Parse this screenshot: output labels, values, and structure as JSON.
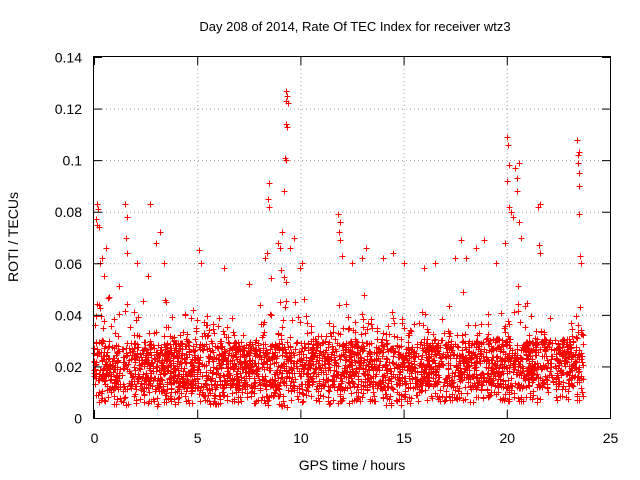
{
  "chart_data": {
    "type": "scatter",
    "title": "Day 208 of 2014, Rate Of TEC Index for receiver wtz3",
    "xlabel": "GPS time / hours",
    "ylabel": "ROTI / TECUs",
    "xlim": [
      0,
      25
    ],
    "ylim": [
      0,
      0.14
    ],
    "x_ticks": [
      "0",
      "5",
      "10",
      "15",
      "20",
      "25"
    ],
    "y_ticks": [
      "0",
      "0.02",
      "0.04",
      "0.06",
      "0.08",
      "0.1",
      "0.12",
      "0.14"
    ],
    "grid": true,
    "marker": "+",
    "color": "#ff0000",
    "series": [
      {
        "name": "ROTI",
        "envelope": {
          "x": [
            0,
            0.2,
            0.4,
            0.6,
            0.8,
            1.0,
            1.5,
            2.0,
            2.5,
            3.0,
            3.5,
            4.0,
            4.5,
            5.0,
            5.5,
            6.0,
            6.5,
            7.0,
            7.5,
            8.0,
            8.5,
            9.0,
            9.5,
            10.0,
            10.5,
            11.0,
            11.5,
            12.0,
            12.5,
            13.0,
            13.5,
            14.0,
            14.5,
            15.0,
            15.5,
            16.0,
            16.5,
            17.0,
            17.5,
            18.0,
            18.5,
            19.0,
            19.5,
            20.0,
            20.5,
            21.0,
            21.5,
            22.0,
            22.5,
            23.0,
            23.5,
            23.7
          ],
          "upper": [
            0.045,
            0.06,
            0.05,
            0.055,
            0.045,
            0.05,
            0.055,
            0.05,
            0.045,
            0.045,
            0.05,
            0.045,
            0.04,
            0.05,
            0.045,
            0.045,
            0.045,
            0.035,
            0.03,
            0.045,
            0.055,
            0.06,
            0.055,
            0.055,
            0.045,
            0.035,
            0.045,
            0.055,
            0.045,
            0.05,
            0.045,
            0.045,
            0.05,
            0.045,
            0.045,
            0.045,
            0.035,
            0.045,
            0.05,
            0.05,
            0.045,
            0.045,
            0.04,
            0.045,
            0.06,
            0.045,
            0.045,
            0.04,
            0.035,
            0.04,
            0.045,
            0.04
          ],
          "lower": [
            0.008,
            0.005,
            0.006,
            0.006,
            0.005,
            0.005,
            0.005,
            0.006,
            0.005,
            0.004,
            0.005,
            0.005,
            0.006,
            0.005,
            0.005,
            0.005,
            0.006,
            0.006,
            0.006,
            0.005,
            0.005,
            0.005,
            0.004,
            0.005,
            0.006,
            0.006,
            0.005,
            0.005,
            0.006,
            0.006,
            0.005,
            0.005,
            0.005,
            0.005,
            0.006,
            0.006,
            0.007,
            0.006,
            0.006,
            0.006,
            0.006,
            0.006,
            0.007,
            0.006,
            0.005,
            0.006,
            0.006,
            0.007,
            0.007,
            0.007,
            0.007,
            0.008
          ]
        },
        "outliers": [
          [
            0.1,
            0.077
          ],
          [
            0.15,
            0.083
          ],
          [
            0.15,
            0.075
          ],
          [
            0.2,
            0.081
          ],
          [
            0.25,
            0.074
          ],
          [
            0.3,
            0.06
          ],
          [
            0.4,
            0.062
          ],
          [
            0.5,
            0.055
          ],
          [
            0.6,
            0.066
          ],
          [
            1.5,
            0.083
          ],
          [
            1.6,
            0.078
          ],
          [
            1.55,
            0.07
          ],
          [
            1.6,
            0.064
          ],
          [
            2.1,
            0.06
          ],
          [
            2.7,
            0.083
          ],
          [
            3.0,
            0.068
          ],
          [
            3.2,
            0.072
          ],
          [
            3.4,
            0.06
          ],
          [
            2.6,
            0.055
          ],
          [
            5.1,
            0.065
          ],
          [
            5.2,
            0.06
          ],
          [
            6.3,
            0.058
          ],
          [
            7.5,
            0.052
          ],
          [
            8.3,
            0.062
          ],
          [
            8.4,
            0.064
          ],
          [
            8.5,
            0.091
          ],
          [
            8.45,
            0.085
          ],
          [
            8.5,
            0.082
          ],
          [
            8.9,
            0.068
          ],
          [
            9.0,
            0.066
          ],
          [
            9.1,
            0.072
          ],
          [
            9.2,
            0.088
          ],
          [
            9.25,
            0.101
          ],
          [
            9.3,
            0.114
          ],
          [
            9.35,
            0.113
          ],
          [
            9.3,
            0.123
          ],
          [
            9.35,
            0.125
          ],
          [
            9.3,
            0.127
          ],
          [
            9.4,
            0.122
          ],
          [
            9.3,
            0.1
          ],
          [
            9.5,
            0.066
          ],
          [
            9.7,
            0.07
          ],
          [
            10.0,
            0.058
          ],
          [
            10.1,
            0.06
          ],
          [
            11.8,
            0.079
          ],
          [
            11.9,
            0.076
          ],
          [
            11.85,
            0.072
          ],
          [
            11.9,
            0.069
          ],
          [
            12.0,
            0.063
          ],
          [
            12.5,
            0.06
          ],
          [
            13.0,
            0.062
          ],
          [
            13.2,
            0.066
          ],
          [
            14.0,
            0.062
          ],
          [
            14.5,
            0.064
          ],
          [
            15.0,
            0.06
          ],
          [
            16.0,
            0.058
          ],
          [
            16.5,
            0.06
          ],
          [
            17.5,
            0.062
          ],
          [
            17.8,
            0.069
          ],
          [
            18.0,
            0.062
          ],
          [
            18.5,
            0.066
          ],
          [
            18.9,
            0.069
          ],
          [
            19.5,
            0.06
          ],
          [
            19.9,
            0.068
          ],
          [
            20.0,
            0.109
          ],
          [
            20.05,
            0.106
          ],
          [
            20.1,
            0.098
          ],
          [
            20.0,
            0.092
          ],
          [
            20.1,
            0.082
          ],
          [
            20.2,
            0.08
          ],
          [
            20.3,
            0.078
          ],
          [
            20.4,
            0.097
          ],
          [
            20.5,
            0.093
          ],
          [
            20.6,
            0.099
          ],
          [
            20.5,
            0.088
          ],
          [
            20.6,
            0.076
          ],
          [
            20.7,
            0.07
          ],
          [
            21.5,
            0.082
          ],
          [
            21.6,
            0.083
          ],
          [
            21.55,
            0.067
          ],
          [
            21.6,
            0.064
          ],
          [
            23.4,
            0.108
          ],
          [
            23.45,
            0.102
          ],
          [
            23.5,
            0.103
          ],
          [
            23.45,
            0.099
          ],
          [
            23.5,
            0.095
          ],
          [
            23.5,
            0.09
          ],
          [
            23.5,
            0.079
          ],
          [
            23.55,
            0.063
          ],
          [
            23.6,
            0.06
          ]
        ]
      }
    ]
  }
}
